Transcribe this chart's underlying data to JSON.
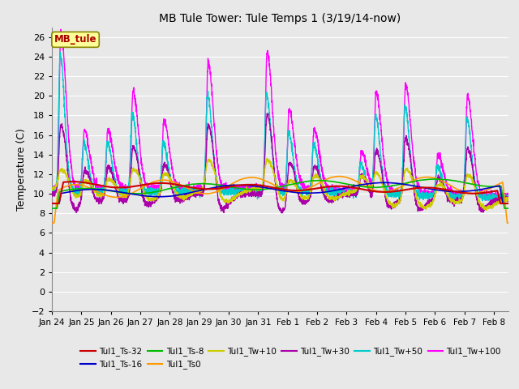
{
  "title": "MB Tule Tower: Tule Temps 1 (3/19/14-now)",
  "ylabel": "Temperature (C)",
  "ylim": [
    -2,
    27
  ],
  "yticks": [
    -2,
    0,
    2,
    4,
    6,
    8,
    10,
    12,
    14,
    16,
    18,
    20,
    22,
    24,
    26
  ],
  "x_labels": [
    "Jan 24",
    "Jan 25",
    "Jan 26",
    "Jan 27",
    "Jan 28",
    "Jan 29",
    "Jan 30",
    "Jan 31",
    "Feb 1",
    "Feb 2",
    "Feb 3",
    "Feb 4",
    "Feb 5",
    "Feb 6",
    "Feb 7",
    "Feb 8"
  ],
  "legend_box_label": "MB_tule",
  "series_colors": {
    "Tul1_Ts-32": "#cc0000",
    "Tul1_Ts-16": "#0000cc",
    "Tul1_Ts-8": "#00bb00",
    "Tul1_Ts0": "#ff9900",
    "Tul1_Tw+10": "#cccc00",
    "Tul1_Tw+30": "#aa00aa",
    "Tul1_Tw+50": "#00cccc",
    "Tul1_Tw+100": "#ff00ff"
  },
  "background_color": "#e8e8e8",
  "plot_bg_color": "#e8e8e8",
  "grid_color": "#ffffff"
}
